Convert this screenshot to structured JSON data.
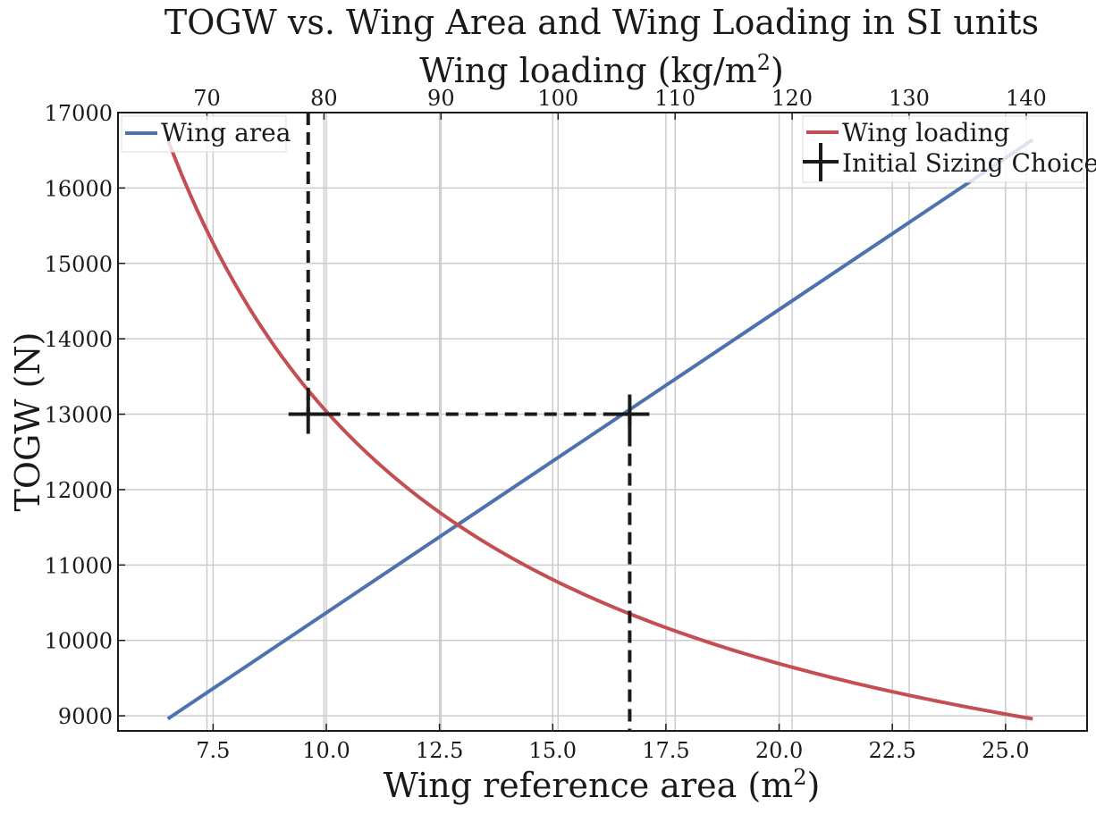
{
  "chart_data": {
    "type": "line",
    "title": "TOGW vs. Wing Area and Wing Loading in SI units",
    "xlabel": "Wing reference area (m",
    "xlabel_sup": "2",
    "xlabel_end": ")",
    "x2label": "Wing loading (kg/m",
    "x2label_sup": "2",
    "x2label_end": ")",
    "ylabel": "TOGW (N)",
    "xlim": [
      5.4,
      26.8
    ],
    "x2lim": [
      62.4,
      145.2
    ],
    "ylim": [
      8800,
      17000
    ],
    "grid": true,
    "xticks": [
      7.5,
      10.0,
      12.5,
      15.0,
      17.5,
      20.0,
      22.5,
      25.0
    ],
    "xtick_labels": [
      "7.5",
      "10.0",
      "12.5",
      "15.0",
      "17.5",
      "20.0",
      "22.5",
      "25.0"
    ],
    "x2ticks": [
      70,
      80,
      90,
      100,
      110,
      120,
      130,
      140
    ],
    "x2tick_labels": [
      "70",
      "80",
      "90",
      "100",
      "110",
      "120",
      "130",
      "140"
    ],
    "yticks": [
      9000,
      10000,
      11000,
      12000,
      13000,
      14000,
      15000,
      16000,
      17000
    ],
    "ytick_labels": [
      "9000",
      "10000",
      "11000",
      "12000",
      "13000",
      "14000",
      "15000",
      "16000",
      "17000"
    ],
    "series": [
      {
        "name": "Wing area",
        "axis": "bottom",
        "color": "#4c72b0",
        "x": [
          6.5,
          25.6
        ],
        "y": [
          8960,
          16640
        ]
      },
      {
        "name": "Wing loading",
        "axis": "top",
        "color": "#c44e52",
        "x": [
          66.5,
          70,
          75,
          80,
          85,
          90,
          95,
          100,
          110,
          120,
          130,
          143
        ],
        "y": [
          16640,
          15808,
          14753,
          13831,
          13017,
          12294,
          11648,
          11065,
          10059,
          9221,
          8511,
          8960
        ]
      }
    ],
    "marker": {
      "name": "Initial Sizing Choice",
      "color": "#1a1a1a",
      "points": [
        {
          "x": 16.7,
          "y": 13000
        },
        {
          "x": 9.6,
          "y": 13000
        }
      ],
      "guides": {
        "vertical_bottom_x": 16.7,
        "vertical_top_x": 9.6,
        "horizontal_y": 13000
      }
    },
    "legend": {
      "left": {
        "placement": "top-left",
        "entries": [
          "Wing area"
        ]
      },
      "right": {
        "placement": "top-right",
        "entries": [
          "Wing loading",
          "Initial Sizing Choice"
        ]
      }
    }
  }
}
